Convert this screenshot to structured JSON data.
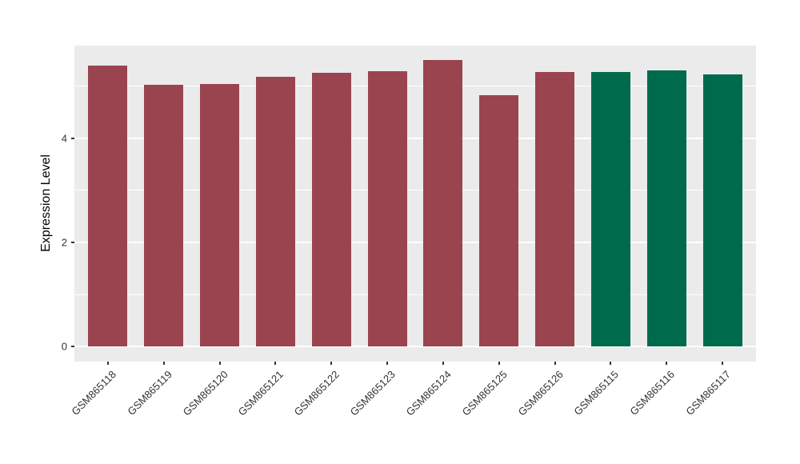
{
  "chart_data": {
    "type": "bar",
    "title": "",
    "xlabel": "",
    "ylabel": "Expression Level",
    "categories": [
      "GSM865118",
      "GSM865119",
      "GSM865120",
      "GSM865121",
      "GSM865122",
      "GSM865123",
      "GSM865124",
      "GSM865125",
      "GSM865126",
      "GSM865115",
      "GSM865116",
      "GSM865117"
    ],
    "values": [
      5.4,
      5.03,
      5.05,
      5.18,
      5.25,
      5.29,
      5.5,
      4.83,
      5.27,
      5.28,
      5.3,
      5.23
    ],
    "bar_colors": [
      "#9A4450",
      "#9A4450",
      "#9A4450",
      "#9A4450",
      "#9A4450",
      "#9A4450",
      "#9A4450",
      "#9A4450",
      "#9A4450",
      "#006A4C",
      "#006A4C",
      "#006A4C"
    ],
    "ytick_labels": [
      "0",
      "2",
      "4"
    ],
    "yticks": [
      0,
      2,
      4
    ],
    "minor_gridlines": [
      1,
      3,
      5
    ],
    "ylim": [
      -0.29,
      5.78
    ],
    "legend": "none",
    "grid": true,
    "panel_bg": "#EBEBEB",
    "grid_color": "#FFFFFF",
    "axis_text_color": "#333333",
    "x_label_angle_deg": 45
  }
}
